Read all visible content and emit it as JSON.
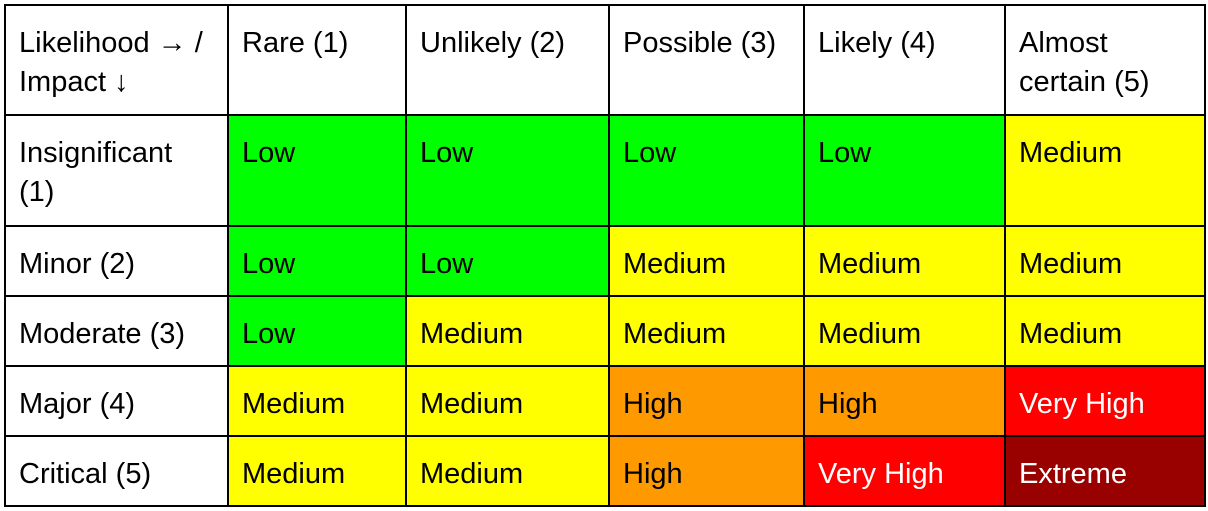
{
  "table": {
    "corner_header": "Likelihood → / Impact ↓",
    "columns": [
      "Rare (1)",
      "Unlikely (2)",
      "Possible (3)",
      "Likely (4)",
      "Almost certain (5)"
    ],
    "rows": [
      {
        "label": "Insignificant (1)",
        "cells": [
          "Low",
          "Low",
          "Low",
          "Low",
          "Medium"
        ]
      },
      {
        "label": "Minor (2)",
        "cells": [
          "Low",
          "Low",
          "Medium",
          "Medium",
          "Medium"
        ]
      },
      {
        "label": "Moderate (3)",
        "cells": [
          "Low",
          "Medium",
          "Medium",
          "Medium",
          "Medium"
        ]
      },
      {
        "label": "Major (4)",
        "cells": [
          "Medium",
          "Medium",
          "High",
          "High",
          "Very High"
        ]
      },
      {
        "label": "Critical (5)",
        "cells": [
          "Medium",
          "Medium",
          "High",
          "Very High",
          "Extreme"
        ]
      }
    ]
  },
  "risk_levels": {
    "Low": {
      "background": "#00ff00",
      "text": "#000000"
    },
    "Medium": {
      "background": "#ffff00",
      "text": "#000000"
    },
    "High": {
      "background": "#ff9900",
      "text": "#000000"
    },
    "Very High": {
      "background": "#ff0000",
      "text": "#ffffff"
    },
    "Extreme": {
      "background": "#990000",
      "text": "#ffffff"
    }
  }
}
